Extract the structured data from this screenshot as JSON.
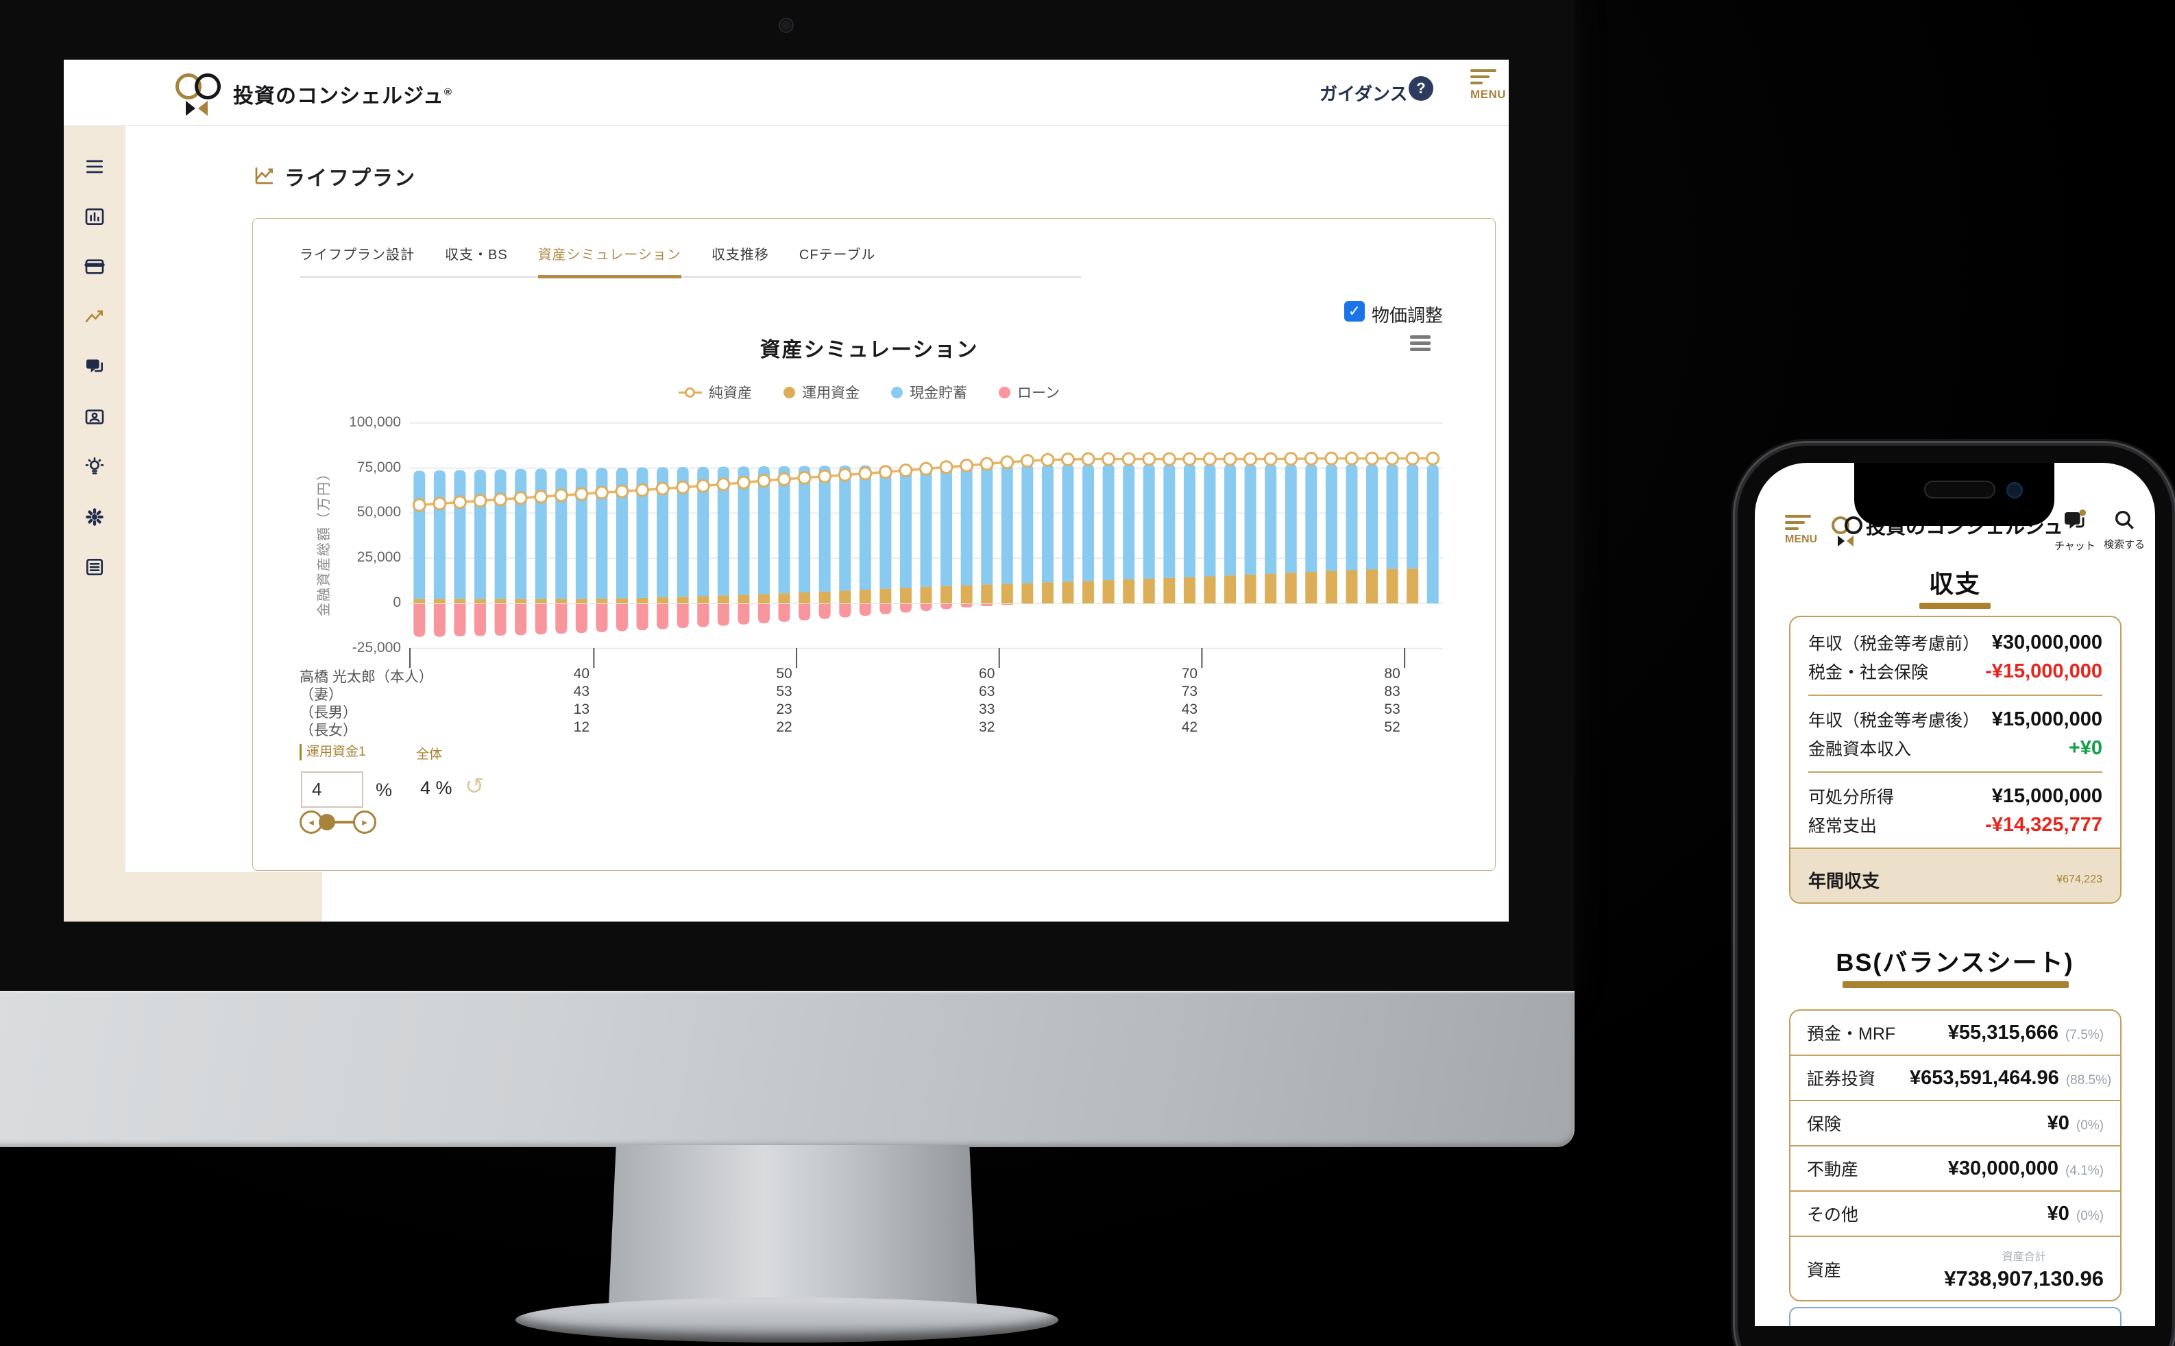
{
  "desktop": {
    "header": {
      "brand": "投資のコンシェルジュ",
      "brand_reg": "®",
      "guidance_label": "ガイダンス",
      "help_icon": "?",
      "menu_label": "MENU"
    },
    "sidebar": {
      "items": [
        {
          "name": "menu"
        },
        {
          "name": "dashboard"
        },
        {
          "name": "accounts"
        },
        {
          "name": "lifeplan",
          "active": true
        },
        {
          "name": "chat"
        },
        {
          "name": "profile"
        },
        {
          "name": "advice"
        },
        {
          "name": "settings"
        },
        {
          "name": "reports"
        }
      ]
    },
    "page_title": "ライフプラン",
    "tabs": [
      {
        "label": "ライフプラン設計",
        "active": false
      },
      {
        "label": "収支・BS",
        "active": false
      },
      {
        "label": "資産シミュレーション",
        "active": true
      },
      {
        "label": "収支推移",
        "active": false
      },
      {
        "label": "CFテーブル",
        "active": false
      }
    ],
    "price_adjust": {
      "checked": true,
      "label": "物価調整"
    },
    "controls": {
      "fund_label": "運用資金1",
      "overall_label": "全体",
      "fund_value": "4",
      "percent_sign": "%",
      "overall_value": "4 %",
      "undo_icon": "↺",
      "slider_left": "◂",
      "slider_right": "▸"
    }
  },
  "chart_data": {
    "type": "bar",
    "stacked": true,
    "title": "資産シミュレーション",
    "ylabel": "金融資産総額（万円）",
    "ylim": [
      -25000,
      100000
    ],
    "yticks": [
      100000,
      75000,
      50000,
      25000,
      0,
      -25000
    ],
    "grid": true,
    "legend_position": "top",
    "x": [
      32,
      33,
      34,
      35,
      36,
      37,
      38,
      39,
      40,
      41,
      42,
      43,
      44,
      45,
      46,
      47,
      48,
      49,
      50,
      51,
      52,
      53,
      54,
      55,
      56,
      57,
      58,
      59,
      60,
      61,
      62,
      63,
      64,
      65,
      66,
      67,
      68,
      69,
      70,
      71,
      72,
      73,
      74,
      75,
      76,
      77,
      78,
      79,
      80,
      81,
      82
    ],
    "xticks": [
      40,
      50,
      60,
      70,
      80
    ],
    "x_tick_rows": [
      {
        "label": "高橋 光太郎（本人）",
        "values": [
          "40",
          "50",
          "60",
          "70",
          "80"
        ]
      },
      {
        "label": "（妻）",
        "values": [
          "43",
          "53",
          "63",
          "73",
          "83"
        ]
      },
      {
        "label": "（長男）",
        "values": [
          "13",
          "23",
          "33",
          "43",
          "53"
        ]
      },
      {
        "label": "（長女）",
        "values": [
          "12",
          "22",
          "32",
          "42",
          "52"
        ]
      }
    ],
    "series": [
      {
        "name": "純資産",
        "type": "line",
        "color": "#e5b76b",
        "values": [
          54500,
          55300,
          56100,
          56900,
          57600,
          58400,
          59100,
          59900,
          60600,
          61400,
          62100,
          62800,
          63600,
          64300,
          65100,
          66000,
          67000,
          68000,
          68800,
          69600,
          70400,
          71200,
          72000,
          72800,
          73700,
          74600,
          75500,
          76400,
          77300,
          78200,
          79000,
          79500,
          79800,
          80000,
          80000,
          80000,
          80000,
          80000,
          80000,
          80000,
          80000,
          80000,
          80000,
          80100,
          80200,
          80300,
          80300,
          80300,
          80300,
          80300,
          80300
        ]
      },
      {
        "name": "運用資金",
        "type": "bar",
        "color": "#dcae57",
        "values": [
          2500,
          2500,
          2500,
          2500,
          2500,
          2500,
          2500,
          2500,
          2500,
          2700,
          2900,
          3100,
          3400,
          3700,
          4000,
          4400,
          4800,
          5200,
          5600,
          6100,
          6600,
          7100,
          7600,
          8100,
          8600,
          9100,
          9600,
          10100,
          10500,
          10900,
          11300,
          11700,
          12100,
          12500,
          12900,
          13300,
          13700,
          14100,
          14500,
          15000,
          15500,
          16000,
          16500,
          17000,
          17500,
          18000,
          18400,
          18800,
          19100,
          19300,
          0
        ]
      },
      {
        "name": "現金貯蓄",
        "type": "bar",
        "color": "#89caf1",
        "values": [
          71000,
          71200,
          71400,
          71600,
          71800,
          72000,
          72150,
          72300,
          72450,
          72400,
          72350,
          72300,
          72100,
          71900,
          71700,
          71400,
          71100,
          70800,
          70500,
          70100,
          69700,
          69300,
          68900,
          68500,
          68100,
          67700,
          67300,
          66900,
          66600,
          66250,
          65900,
          65550,
          65200,
          64800,
          64400,
          64000,
          63600,
          63200,
          62800,
          62300,
          61800,
          61300,
          60800,
          60300,
          59800,
          59300,
          58900,
          58500,
          58200,
          58000,
          77000
        ]
      },
      {
        "name": "ローン",
        "type": "bar",
        "color": "#f9959d",
        "values": [
          -18500,
          -18500,
          -18300,
          -18100,
          -17900,
          -17600,
          -17200,
          -16800,
          -16400,
          -15900,
          -15400,
          -14900,
          -14300,
          -13700,
          -13100,
          -12400,
          -11700,
          -11000,
          -10200,
          -9400,
          -8600,
          -7800,
          -6900,
          -6000,
          -5100,
          -4200,
          -3200,
          -2200,
          -1500,
          -800,
          -300,
          0,
          0,
          0,
          0,
          0,
          0,
          0,
          0,
          0,
          0,
          0,
          0,
          0,
          0,
          0,
          0,
          0,
          0,
          0,
          0
        ]
      }
    ]
  },
  "phone": {
    "menu_label": "MENU",
    "brand": "投資のコンシェルジュ",
    "chat_label": "チャット",
    "search_label": "検索する",
    "income_section": {
      "title": "収支",
      "rows": [
        {
          "label": "年収（税金等考慮前）",
          "value": "¥30,000,000",
          "tone": "normal"
        },
        {
          "label": "税金・社会保険",
          "value": "-¥15,000,000",
          "tone": "negative"
        },
        {
          "divider": true
        },
        {
          "label": "年収（税金等考慮後）",
          "value": "¥15,000,000",
          "tone": "normal"
        },
        {
          "label": "金融資本収入",
          "value": "+¥0",
          "tone": "positive"
        },
        {
          "divider": true
        },
        {
          "label": "可処分所得",
          "value": "¥15,000,000",
          "tone": "normal"
        },
        {
          "label": "経常支出",
          "value": "-¥14,325,777",
          "tone": "negative"
        }
      ],
      "total_row": {
        "label": "年間収支",
        "value": "¥674,223"
      }
    },
    "bs_section": {
      "title": "BS(バランスシート)",
      "rows": [
        {
          "label": "預金・MRF",
          "value": "¥55,315,666",
          "pct": "(7.5%)"
        },
        {
          "label": "証券投資",
          "value": "¥653,591,464.96",
          "pct": "(88.5%)"
        },
        {
          "label": "保険",
          "value": "¥0",
          "pct": "(0%)"
        },
        {
          "label": "不動産",
          "value": "¥30,000,000",
          "pct": "(4.1%)"
        },
        {
          "label": "その他",
          "value": "¥0",
          "pct": "(0%)"
        }
      ],
      "total_row": {
        "sub_label": "資産合計",
        "label": "資産",
        "value": "¥738,907,130.96"
      }
    }
  }
}
